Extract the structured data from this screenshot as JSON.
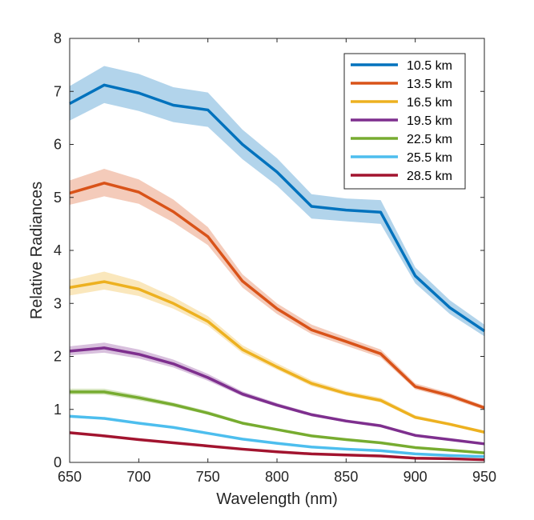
{
  "chart_data": {
    "type": "line",
    "xlabel": "Wavelength (nm)",
    "ylabel": "Relative Radiances",
    "xlim": [
      650,
      950
    ],
    "ylim": [
      0,
      8
    ],
    "xticks": [
      "650",
      "700",
      "750",
      "800",
      "850",
      "900",
      "950"
    ],
    "yticks": [
      "0",
      "1",
      "2",
      "3",
      "4",
      "5",
      "6",
      "7",
      "8"
    ],
    "grid": false,
    "legend_position": "top-right",
    "x": [
      650,
      675,
      700,
      725,
      750,
      775,
      800,
      825,
      850,
      875,
      900,
      925,
      950
    ],
    "series": [
      {
        "name": "10.5 km",
        "color": "#0072BD",
        "values": [
          6.77,
          7.12,
          6.97,
          6.74,
          6.65,
          6.0,
          5.48,
          4.83,
          4.76,
          4.72,
          3.52,
          2.92,
          2.48
        ],
        "band_lower": [
          6.45,
          6.78,
          6.63,
          6.42,
          6.33,
          5.72,
          5.22,
          4.6,
          4.55,
          4.5,
          3.38,
          2.8,
          2.38
        ],
        "band_upper": [
          7.1,
          7.48,
          7.33,
          7.08,
          6.98,
          6.28,
          5.74,
          5.06,
          4.98,
          4.95,
          3.68,
          3.06,
          2.6
        ]
      },
      {
        "name": "13.5 km",
        "color": "#D95319",
        "values": [
          5.08,
          5.27,
          5.1,
          4.73,
          4.26,
          3.42,
          2.9,
          2.5,
          2.28,
          2.05,
          1.43,
          1.26,
          1.03
        ],
        "band_lower": [
          4.86,
          5.02,
          4.88,
          4.53,
          4.1,
          3.3,
          2.8,
          2.42,
          2.2,
          1.98,
          1.38,
          1.21,
          0.99
        ],
        "band_upper": [
          5.32,
          5.54,
          5.34,
          4.96,
          4.44,
          3.55,
          3.0,
          2.6,
          2.36,
          2.13,
          1.49,
          1.31,
          1.07
        ]
      },
      {
        "name": "16.5 km",
        "color": "#EDB120",
        "values": [
          3.3,
          3.41,
          3.27,
          3.0,
          2.66,
          2.13,
          1.8,
          1.49,
          1.3,
          1.17,
          0.85,
          0.72,
          0.57
        ],
        "band_lower": [
          3.15,
          3.26,
          3.14,
          2.9,
          2.58,
          2.06,
          1.75,
          1.44,
          1.26,
          1.13,
          0.82,
          0.7,
          0.55
        ],
        "band_upper": [
          3.45,
          3.6,
          3.42,
          3.12,
          2.76,
          2.21,
          1.87,
          1.55,
          1.35,
          1.22,
          0.89,
          0.75,
          0.6
        ]
      },
      {
        "name": "19.5 km",
        "color": "#7E2F8E",
        "values": [
          2.1,
          2.16,
          2.04,
          1.86,
          1.6,
          1.29,
          1.08,
          0.9,
          0.78,
          0.69,
          0.51,
          0.43,
          0.35
        ],
        "band_lower": [
          2.02,
          2.07,
          1.96,
          1.79,
          1.54,
          1.25,
          1.05,
          0.87,
          0.76,
          0.67,
          0.49,
          0.41,
          0.33
        ],
        "band_upper": [
          2.19,
          2.26,
          2.13,
          1.94,
          1.67,
          1.34,
          1.12,
          0.93,
          0.81,
          0.72,
          0.53,
          0.45,
          0.37
        ]
      },
      {
        "name": "22.5 km",
        "color": "#77AC30",
        "values": [
          1.33,
          1.33,
          1.22,
          1.09,
          0.93,
          0.74,
          0.62,
          0.5,
          0.43,
          0.37,
          0.28,
          0.23,
          0.18
        ],
        "band_lower": [
          1.28,
          1.28,
          1.17,
          1.05,
          0.9,
          0.72,
          0.6,
          0.49,
          0.42,
          0.36,
          0.27,
          0.22,
          0.17
        ],
        "band_upper": [
          1.39,
          1.39,
          1.27,
          1.13,
          0.97,
          0.77,
          0.64,
          0.52,
          0.45,
          0.39,
          0.29,
          0.24,
          0.19
        ]
      },
      {
        "name": "25.5 km",
        "color": "#4DBEEE",
        "values": [
          0.87,
          0.83,
          0.74,
          0.66,
          0.55,
          0.44,
          0.36,
          0.29,
          0.25,
          0.22,
          0.16,
          0.13,
          0.11
        ],
        "band_lower": [
          0.85,
          0.81,
          0.72,
          0.64,
          0.54,
          0.43,
          0.35,
          0.28,
          0.24,
          0.21,
          0.15,
          0.12,
          0.1
        ],
        "band_upper": [
          0.9,
          0.85,
          0.76,
          0.68,
          0.57,
          0.46,
          0.37,
          0.3,
          0.26,
          0.23,
          0.17,
          0.14,
          0.12
        ]
      },
      {
        "name": "28.5 km",
        "color": "#A2142F",
        "values": [
          0.56,
          0.5,
          0.43,
          0.37,
          0.31,
          0.25,
          0.2,
          0.16,
          0.14,
          0.12,
          0.08,
          0.07,
          0.05
        ],
        "band_lower": [
          0.55,
          0.49,
          0.42,
          0.36,
          0.3,
          0.24,
          0.19,
          0.15,
          0.13,
          0.11,
          0.07,
          0.06,
          0.04
        ],
        "band_upper": [
          0.57,
          0.51,
          0.44,
          0.38,
          0.32,
          0.26,
          0.21,
          0.17,
          0.15,
          0.13,
          0.09,
          0.08,
          0.06
        ]
      }
    ]
  }
}
